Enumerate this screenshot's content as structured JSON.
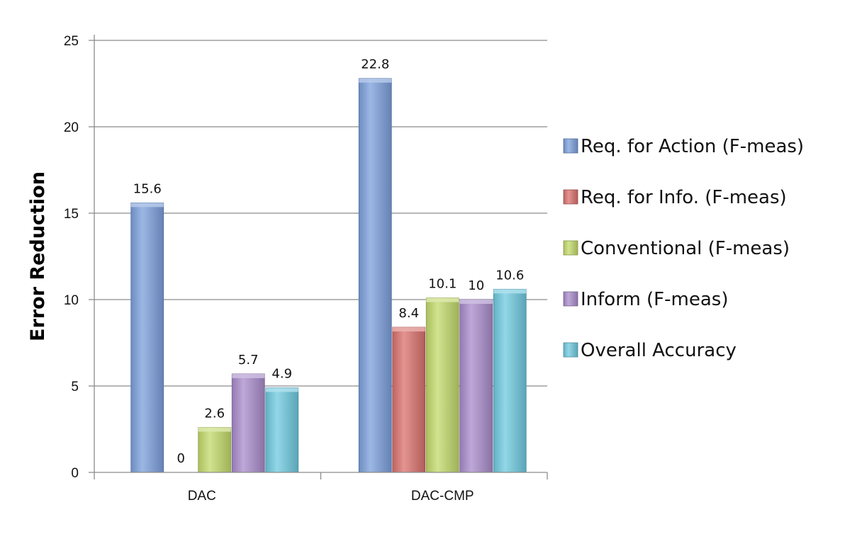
{
  "chart_data": {
    "type": "bar",
    "title": "",
    "xlabel": "",
    "ylabel": "Error Reduction",
    "ylim": [
      0,
      25
    ],
    "yticks": [
      0,
      5,
      10,
      15,
      20,
      25
    ],
    "grid": true,
    "legend_position": "right",
    "categories": [
      "DAC",
      "DAC-CMP"
    ],
    "series": [
      {
        "name": "Req. for Action (F-meas)",
        "color": "#7b9fdb",
        "values": [
          15.6,
          22.8
        ]
      },
      {
        "name": "Req. for Info. (F-meas)",
        "color": "#d9706c",
        "values": [
          0,
          8.4
        ]
      },
      {
        "name": "Conventional (F-meas)",
        "color": "#c2d96a",
        "values": [
          2.6,
          10.1
        ]
      },
      {
        "name": "Inform (F-meas)",
        "color": "#a88bcb",
        "values": [
          5.7,
          10
        ]
      },
      {
        "name": "Overall Accuracy",
        "color": "#6ec9df",
        "values": [
          4.9,
          10.6
        ]
      }
    ]
  }
}
